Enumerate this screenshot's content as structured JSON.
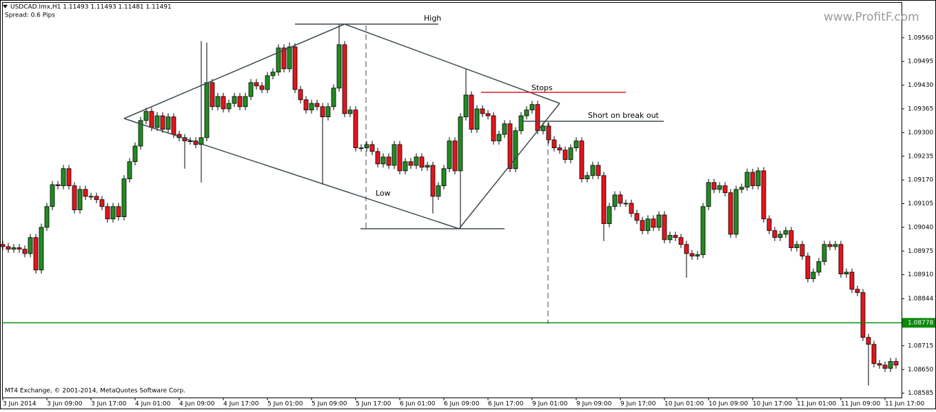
{
  "chart_data": {
    "type": "candlestick",
    "title": "USDCAD.lmx,H1  1.11493 1.11493 1.11481 1.11491",
    "subtitle": "Spread: 0.6 Pips",
    "footer": "MT4 Exchange, © 2001-2014, MetaQuotes Software Corp.",
    "watermark": "www.ProfitF.com",
    "annotations": [
      "High",
      "Low",
      "Stops",
      "Short on break out"
    ],
    "up_color": "#228b22",
    "down_color": "#e3161c",
    "price_line": 1.08778,
    "price_line_color": "#0a8a0a",
    "ylim": [
      1.08573,
      1.09658
    ],
    "yticks": [
      {
        "value": 1.0956,
        "label": "1.09560"
      },
      1.09495,
      {
        "value": 1.0943,
        "label": "1.09430"
      },
      1.09365,
      {
        "value": 1.093,
        "label": "1.09300"
      },
      1.09235,
      {
        "value": 1.0917,
        "label": "1.09170"
      },
      1.09105,
      {
        "value": 1.0904,
        "label": "1.09040"
      },
      1.08975,
      {
        "value": 1.0891,
        "label": "1.08910"
      },
      1.08844,
      1.08715,
      {
        "value": 1.0865,
        "label": "1.08650"
      },
      1.08585
    ],
    "categories": [
      "3 Jun 2014",
      null,
      null,
      null,
      null,
      null,
      null,
      null,
      "3 Jun 09:00",
      null,
      null,
      null,
      null,
      null,
      null,
      null,
      "3 Jun 17:00",
      null,
      null,
      null,
      null,
      null,
      null,
      null,
      "4 Jun 01:00",
      null,
      null,
      null,
      null,
      null,
      null,
      null,
      "4 Jun 09:00",
      null,
      null,
      null,
      null,
      null,
      null,
      null,
      "4 Jun 17:00",
      null,
      null,
      null,
      null,
      null,
      null,
      null,
      "5 Jun 01:00",
      null,
      null,
      null,
      null,
      null,
      null,
      null,
      "5 Jun 09:00",
      null,
      null,
      null,
      null,
      null,
      null,
      null,
      "5 Jun 17:00",
      null,
      null,
      null,
      null,
      null,
      null,
      null,
      "6 Jun 01:00",
      null,
      null,
      null,
      null,
      null,
      null,
      null,
      "6 Jun 09:00",
      null,
      null,
      null,
      null,
      null,
      null,
      null,
      "6 Jun 17:00",
      null,
      null,
      null,
      null,
      null,
      null,
      null,
      "9 Jun 01:00",
      null,
      null,
      null,
      null,
      null,
      null,
      null,
      "9 Jun 09:00",
      null,
      null,
      null,
      null,
      null,
      null,
      null,
      "9 Jun 17:00",
      null,
      null,
      null,
      null,
      null,
      null,
      null,
      "10 Jun 01:00",
      null,
      null,
      null,
      null,
      null,
      null,
      null,
      "10 Jun 09:00",
      null,
      null,
      null,
      null,
      null,
      null,
      null,
      "10 Jun 17:00",
      null,
      null,
      null,
      null,
      null,
      null,
      null,
      "11 Jun 01:00",
      null,
      null,
      null,
      null,
      null,
      null,
      null,
      "11 Jun 09:00",
      null,
      null,
      null,
      null,
      null,
      null,
      null,
      "11 Jun 17:00",
      null,
      null
    ],
    "open": [
      1.08993,
      1.08987,
      1.0898,
      1.08984,
      1.0898,
      1.08968,
      1.09012,
      1.08923,
      1.0904,
      1.09097,
      1.09157,
      1.09154,
      1.09201,
      1.09154,
      1.09088,
      1.09144,
      1.09125,
      1.09125,
      1.09116,
      1.09097,
      1.09063,
      1.09097,
      1.09069,
      1.09173,
      1.0922,
      1.09263,
      1.09333,
      1.09358,
      1.09314,
      1.09346,
      1.09309,
      1.09343,
      1.09295,
      1.09286,
      1.09277,
      1.09277,
      1.09267,
      1.09286,
      1.09437,
      1.09371,
      1.09399,
      1.09365,
      1.0938,
      1.09399,
      1.09371,
      1.09399,
      1.09437,
      1.09428,
      1.09418,
      1.09456,
      1.09466,
      1.09532,
      1.09475,
      1.09535,
      1.09418,
      1.0939,
      1.09362,
      1.0938,
      1.09371,
      1.09343,
      1.09371,
      1.09422,
      1.09541,
      1.09352,
      1.09362,
      1.09258,
      1.09258,
      1.09267,
      1.09248,
      1.09214,
      1.09233,
      1.0921,
      1.09267,
      1.09195,
      1.0922,
      1.0921,
      1.09233,
      1.09205,
      1.0921,
      1.09125,
      1.09154,
      1.09201,
      1.09277,
      1.09195,
      1.09343,
      1.09403,
      1.09309,
      1.09365,
      1.09352,
      1.09346,
      1.09277,
      1.09295,
      1.09324,
      1.09201,
      1.09305,
      1.09346,
      1.09362,
      1.09377,
      1.09305,
      1.09318,
      1.0928,
      1.09258,
      1.09252,
      1.09226,
      1.09258,
      1.09277,
      1.09173,
      1.09182,
      1.0921,
      1.09182,
      1.0905,
      1.09097,
      1.09129,
      1.09106,
      1.09106,
      1.09078,
      1.09059,
      1.09031,
      1.09063,
      1.0904,
      1.09074,
      1.09006,
      1.09018,
      1.09012,
      1.08993,
      1.08968,
      1.08961,
      1.08965,
      1.09097,
      1.09163,
      1.09144,
      1.09154,
      1.09135,
      1.09021,
      1.09144,
      1.0915,
      1.09191,
      1.09154,
      1.09195,
      1.09063,
      1.09031,
      1.09012,
      1.09021,
      1.09031,
      1.08984,
      1.08993,
      1.08961,
      1.08899,
      1.08917,
      1.08946,
      1.08993,
      1.08987,
      1.08993,
      1.08912,
      1.08917,
      1.0887,
      1.08861,
      1.08738,
      1.08719,
      1.08666,
      1.08662,
      1.08653,
      1.08672
    ],
    "high": [
      1.09003,
      1.08997,
      1.08994,
      1.08994,
      1.0899,
      1.09022,
      1.09022,
      1.0905,
      1.09107,
      1.09167,
      1.09167,
      1.09211,
      1.09211,
      1.09164,
      1.09154,
      1.09154,
      1.09135,
      1.09135,
      1.09126,
      1.09107,
      1.09107,
      1.09107,
      1.09183,
      1.0923,
      1.09273,
      1.09343,
      1.09368,
      1.09368,
      1.09356,
      1.09356,
      1.09353,
      1.09353,
      1.09305,
      1.09296,
      1.09287,
      1.09287,
      1.09551,
      1.09547,
      1.09447,
      1.09409,
      1.09409,
      1.0939,
      1.09409,
      1.09409,
      1.09409,
      1.09447,
      1.09447,
      1.09438,
      1.09466,
      1.09476,
      1.09542,
      1.09542,
      1.09547,
      1.09545,
      1.09428,
      1.094,
      1.0939,
      1.0939,
      1.09381,
      1.09381,
      1.09432,
      1.09598,
      1.09551,
      1.09372,
      1.09372,
      1.09268,
      1.09277,
      1.09277,
      1.09258,
      1.09243,
      1.09243,
      1.09277,
      1.09277,
      1.0923,
      1.0923,
      1.09243,
      1.09243,
      1.0922,
      1.0922,
      1.09164,
      1.09211,
      1.09287,
      1.09287,
      1.09353,
      1.09475,
      1.09413,
      1.09375,
      1.09375,
      1.09362,
      1.09356,
      1.09305,
      1.09334,
      1.09334,
      1.09315,
      1.09356,
      1.09372,
      1.09387,
      1.09387,
      1.09328,
      1.09328,
      1.0929,
      1.09268,
      1.09262,
      1.09268,
      1.09287,
      1.09287,
      1.09192,
      1.0922,
      1.0922,
      1.09192,
      1.09107,
      1.09139,
      1.09139,
      1.09116,
      1.09116,
      1.09088,
      1.09069,
      1.09073,
      1.09073,
      1.09084,
      1.09084,
      1.09028,
      1.09028,
      1.09022,
      1.09003,
      1.08978,
      1.08975,
      1.09107,
      1.09173,
      1.09173,
      1.09164,
      1.09164,
      1.09145,
      1.09154,
      1.0916,
      1.09201,
      1.09201,
      1.09205,
      1.09205,
      1.09073,
      1.09041,
      1.09031,
      1.09041,
      1.09041,
      1.09003,
      1.09003,
      1.08971,
      1.08927,
      1.08956,
      1.09003,
      1.09003,
      1.09003,
      1.09003,
      1.08927,
      1.08927,
      1.0888,
      1.08871,
      1.08748,
      1.08729,
      1.08676,
      1.08672,
      1.08682,
      1.08682
    ],
    "low": [
      1.08977,
      1.0897,
      1.0897,
      1.0897,
      1.08958,
      1.08958,
      1.08913,
      1.08913,
      1.0903,
      1.09087,
      1.09144,
      1.09144,
      1.09144,
      1.09078,
      1.09078,
      1.09115,
      1.09115,
      1.09106,
      1.09087,
      1.09053,
      1.09053,
      1.09059,
      1.09059,
      1.09163,
      1.0921,
      1.09253,
      1.09323,
      1.09304,
      1.09304,
      1.09299,
      1.09299,
      1.09285,
      1.09276,
      1.09201,
      1.09267,
      1.09257,
      1.09163,
      1.09276,
      1.09361,
      1.09361,
      1.09355,
      1.09355,
      1.0937,
      1.09361,
      1.09361,
      1.09389,
      1.09418,
      1.09408,
      1.09408,
      1.09446,
      1.09456,
      1.09465,
      1.09465,
      1.09408,
      1.0938,
      1.09352,
      1.09352,
      1.09361,
      1.09157,
      1.09333,
      1.09361,
      1.09412,
      1.09342,
      1.09342,
      1.09248,
      1.09248,
      1.09248,
      1.09238,
      1.09204,
      1.09204,
      1.092,
      1.092,
      1.09185,
      1.09185,
      1.092,
      1.092,
      1.09195,
      1.09195,
      1.09078,
      1.09115,
      1.09144,
      1.09191,
      1.09185,
      1.09036,
      1.09333,
      1.09299,
      1.09299,
      1.09342,
      1.09336,
      1.09267,
      1.09267,
      1.09285,
      1.09191,
      1.09191,
      1.09295,
      1.09336,
      1.09352,
      1.09295,
      1.09295,
      1.0927,
      1.09248,
      1.09242,
      1.09216,
      1.09216,
      1.09248,
      1.09163,
      1.09163,
      1.09172,
      1.09172,
      1.09002,
      1.0904,
      1.09087,
      1.09096,
      1.09096,
      1.09068,
      1.09049,
      1.09021,
      1.09021,
      1.0903,
      1.0903,
      1.08996,
      1.08996,
      1.09002,
      1.08983,
      1.08902,
      1.08951,
      1.08951,
      1.08955,
      1.09087,
      1.09134,
      1.09134,
      1.09125,
      1.09011,
      1.09011,
      1.09134,
      1.0914,
      1.09144,
      1.09144,
      1.09053,
      1.09021,
      1.09002,
      1.09002,
      1.09011,
      1.08974,
      1.08974,
      1.08951,
      1.08889,
      1.08889,
      1.08907,
      1.08936,
      1.08977,
      1.08977,
      1.08902,
      1.08902,
      1.0886,
      1.08851,
      1.08728,
      1.08606,
      1.08656,
      1.08652,
      1.08643,
      1.08643,
      1.08652
    ],
    "close": [
      1.08987,
      1.0898,
      1.08984,
      1.0898,
      1.08968,
      1.09012,
      1.08923,
      1.0904,
      1.09097,
      1.09157,
      1.09154,
      1.09201,
      1.09154,
      1.09088,
      1.09144,
      1.09125,
      1.09125,
      1.09116,
      1.09097,
      1.09063,
      1.09097,
      1.09069,
      1.09173,
      1.0922,
      1.09263,
      1.09333,
      1.09358,
      1.09314,
      1.09346,
      1.09309,
      1.09343,
      1.09295,
      1.09286,
      1.09277,
      1.09277,
      1.09267,
      1.09286,
      1.09437,
      1.09371,
      1.09399,
      1.09365,
      1.0938,
      1.09399,
      1.09371,
      1.09399,
      1.09437,
      1.09428,
      1.09418,
      1.09456,
      1.09466,
      1.09532,
      1.09475,
      1.09535,
      1.09418,
      1.0939,
      1.09362,
      1.0938,
      1.09371,
      1.09343,
      1.09371,
      1.09422,
      1.09541,
      1.09352,
      1.09362,
      1.09258,
      1.09258,
      1.09267,
      1.09248,
      1.09214,
      1.09233,
      1.0921,
      1.09267,
      1.09195,
      1.0922,
      1.0921,
      1.09233,
      1.09205,
      1.0921,
      1.09125,
      1.09154,
      1.09201,
      1.09277,
      1.09195,
      1.09343,
      1.09403,
      1.09309,
      1.09365,
      1.09352,
      1.09346,
      1.09277,
      1.09295,
      1.09324,
      1.09201,
      1.09305,
      1.09346,
      1.09362,
      1.09377,
      1.09305,
      1.09318,
      1.0928,
      1.09258,
      1.09252,
      1.09226,
      1.09258,
      1.09277,
      1.09173,
      1.09182,
      1.0921,
      1.09182,
      1.0905,
      1.09097,
      1.09129,
      1.09106,
      1.09106,
      1.09078,
      1.09059,
      1.09031,
      1.09063,
      1.0904,
      1.09074,
      1.09006,
      1.09018,
      1.09012,
      1.08993,
      1.08968,
      1.08961,
      1.08965,
      1.09097,
      1.09163,
      1.09144,
      1.09154,
      1.09135,
      1.09021,
      1.09144,
      1.0915,
      1.09191,
      1.09154,
      1.09195,
      1.09063,
      1.09031,
      1.09012,
      1.09021,
      1.09031,
      1.08984,
      1.08993,
      1.08961,
      1.08899,
      1.08917,
      1.08946,
      1.08993,
      1.08987,
      1.08993,
      1.08912,
      1.08917,
      1.0887,
      1.08861,
      1.08738,
      1.08719,
      1.08666,
      1.08662,
      1.08653,
      1.08672,
      1.08662
    ]
  }
}
